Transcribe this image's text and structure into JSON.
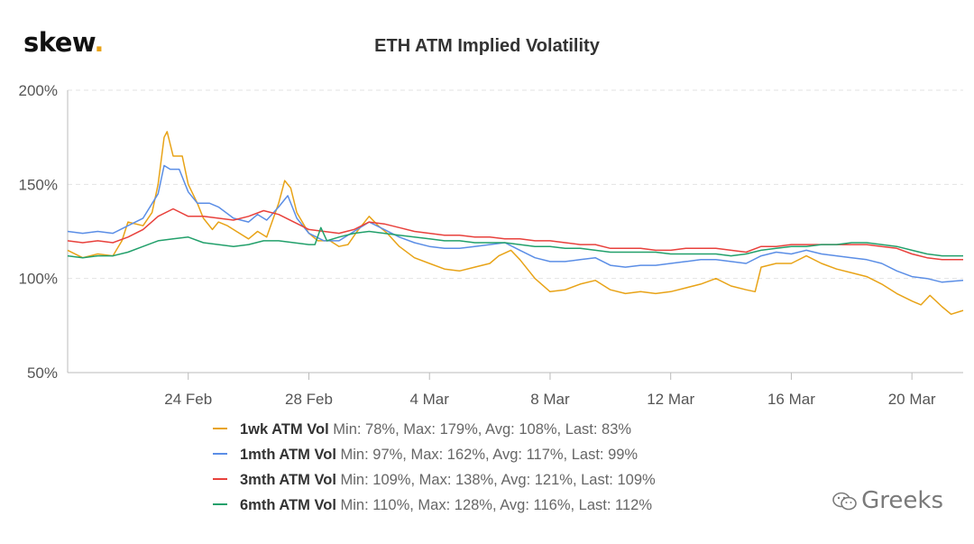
{
  "brand": {
    "logo_text": "skew",
    "logo_dot": ".",
    "dot_color": "#e8a317"
  },
  "watermark": {
    "text": "Greeks",
    "icon": "wechat-icon"
  },
  "chart_data": {
    "type": "line",
    "title": "ETH ATM Implied Volatility",
    "xlabel": "",
    "ylabel": "",
    "x_ticks": [
      "24 Feb",
      "28 Feb",
      "4 Mar",
      "8 Mar",
      "12 Mar",
      "16 Mar",
      "20 Mar"
    ],
    "x_tick_days": [
      4,
      8,
      12,
      16,
      20,
      24,
      28
    ],
    "x_range_days": [
      0,
      29.7
    ],
    "x_day0": "20 Feb",
    "y_ticks": [
      "50%",
      "100%",
      "150%",
      "200%"
    ],
    "y_tick_values": [
      50,
      100,
      150,
      200
    ],
    "ylim": [
      50,
      200
    ],
    "grid": "horizontal dashed",
    "legend_position": "bottom",
    "series": [
      {
        "name": "1wk ATM Vol",
        "color": "#e8a317",
        "stats": "Min: 78%, Max: 179%, Avg: 108%, Last: 83%",
        "points": [
          [
            0,
            115
          ],
          [
            0.5,
            111
          ],
          [
            1,
            113
          ],
          [
            1.5,
            112
          ],
          [
            1.8,
            120
          ],
          [
            2,
            130
          ],
          [
            2.5,
            128
          ],
          [
            2.8,
            135
          ],
          [
            3,
            150
          ],
          [
            3.2,
            175
          ],
          [
            3.3,
            178
          ],
          [
            3.5,
            165
          ],
          [
            3.8,
            165
          ],
          [
            4,
            150
          ],
          [
            4.3,
            140
          ],
          [
            4.5,
            132
          ],
          [
            4.8,
            126
          ],
          [
            5,
            130
          ],
          [
            5.3,
            128
          ],
          [
            5.6,
            125
          ],
          [
            6,
            121
          ],
          [
            6.3,
            125
          ],
          [
            6.6,
            122
          ],
          [
            7,
            140
          ],
          [
            7.2,
            152
          ],
          [
            7.4,
            148
          ],
          [
            7.6,
            135
          ],
          [
            8,
            124
          ],
          [
            8.3,
            120
          ],
          [
            8.7,
            120
          ],
          [
            9,
            117
          ],
          [
            9.3,
            118
          ],
          [
            9.6,
            125
          ],
          [
            10,
            133
          ],
          [
            10.3,
            128
          ],
          [
            10.6,
            124
          ],
          [
            11,
            117
          ],
          [
            11.5,
            111
          ],
          [
            12,
            108
          ],
          [
            12.5,
            105
          ],
          [
            13,
            104
          ],
          [
            13.5,
            106
          ],
          [
            14,
            108
          ],
          [
            14.3,
            112
          ],
          [
            14.7,
            115
          ],
          [
            15,
            110
          ],
          [
            15.5,
            100
          ],
          [
            16,
            93
          ],
          [
            16.5,
            94
          ],
          [
            17,
            97
          ],
          [
            17.5,
            99
          ],
          [
            18,
            94
          ],
          [
            18.5,
            92
          ],
          [
            19,
            93
          ],
          [
            19.5,
            92
          ],
          [
            20,
            93
          ],
          [
            20.5,
            95
          ],
          [
            21,
            97
          ],
          [
            21.5,
            100
          ],
          [
            22,
            96
          ],
          [
            22.5,
            94
          ],
          [
            22.8,
            93
          ],
          [
            23,
            106
          ],
          [
            23.5,
            108
          ],
          [
            24,
            108
          ],
          [
            24.5,
            112
          ],
          [
            25,
            108
          ],
          [
            25.5,
            105
          ],
          [
            26,
            103
          ],
          [
            26.5,
            101
          ],
          [
            27,
            97
          ],
          [
            27.5,
            92
          ],
          [
            28,
            88
          ],
          [
            28.3,
            86
          ],
          [
            28.6,
            91
          ],
          [
            29,
            85
          ],
          [
            29.3,
            81
          ],
          [
            29.7,
            83
          ]
        ]
      },
      {
        "name": "1mth ATM Vol",
        "color": "#5b8ee6",
        "stats": "Min: 97%, Max: 162%, Avg: 117%, Last: 99%",
        "points": [
          [
            0,
            125
          ],
          [
            0.5,
            124
          ],
          [
            1,
            125
          ],
          [
            1.5,
            124
          ],
          [
            2,
            128
          ],
          [
            2.5,
            132
          ],
          [
            3,
            145
          ],
          [
            3.2,
            160
          ],
          [
            3.4,
            158
          ],
          [
            3.7,
            158
          ],
          [
            4,
            146
          ],
          [
            4.3,
            140
          ],
          [
            4.7,
            140
          ],
          [
            5,
            138
          ],
          [
            5.5,
            132
          ],
          [
            6,
            130
          ],
          [
            6.3,
            134
          ],
          [
            6.6,
            131
          ],
          [
            7,
            138
          ],
          [
            7.3,
            144
          ],
          [
            7.6,
            132
          ],
          [
            8,
            124
          ],
          [
            8.5,
            120
          ],
          [
            9,
            120
          ],
          [
            9.5,
            125
          ],
          [
            10,
            130
          ],
          [
            10.5,
            126
          ],
          [
            11,
            122
          ],
          [
            11.5,
            119
          ],
          [
            12,
            117
          ],
          [
            12.5,
            116
          ],
          [
            13,
            116
          ],
          [
            13.5,
            117
          ],
          [
            14,
            118
          ],
          [
            14.5,
            119
          ],
          [
            15,
            115
          ],
          [
            15.5,
            111
          ],
          [
            16,
            109
          ],
          [
            16.5,
            109
          ],
          [
            17,
            110
          ],
          [
            17.5,
            111
          ],
          [
            18,
            107
          ],
          [
            18.5,
            106
          ],
          [
            19,
            107
          ],
          [
            19.5,
            107
          ],
          [
            20,
            108
          ],
          [
            20.5,
            109
          ],
          [
            21,
            110
          ],
          [
            21.5,
            110
          ],
          [
            22,
            109
          ],
          [
            22.5,
            108
          ],
          [
            23,
            112
          ],
          [
            23.5,
            114
          ],
          [
            24,
            113
          ],
          [
            24.5,
            115
          ],
          [
            25,
            113
          ],
          [
            25.5,
            112
          ],
          [
            26,
            111
          ],
          [
            26.5,
            110
          ],
          [
            27,
            108
          ],
          [
            27.5,
            104
          ],
          [
            28,
            101
          ],
          [
            28.5,
            100
          ],
          [
            29,
            98
          ],
          [
            29.7,
            99
          ]
        ]
      },
      {
        "name": "3mth ATM Vol",
        "color": "#e8413c",
        "stats": "Min: 109%, Max: 138%, Avg: 121%, Last: 109%",
        "points": [
          [
            0,
            120
          ],
          [
            0.5,
            119
          ],
          [
            1,
            120
          ],
          [
            1.5,
            119
          ],
          [
            2,
            122
          ],
          [
            2.5,
            126
          ],
          [
            3,
            133
          ],
          [
            3.5,
            137
          ],
          [
            4,
            133
          ],
          [
            4.5,
            133
          ],
          [
            5,
            132
          ],
          [
            5.5,
            131
          ],
          [
            6,
            133
          ],
          [
            6.5,
            136
          ],
          [
            7,
            134
          ],
          [
            7.5,
            130
          ],
          [
            8,
            126
          ],
          [
            8.5,
            125
          ],
          [
            9,
            124
          ],
          [
            9.5,
            126
          ],
          [
            10,
            130
          ],
          [
            10.5,
            129
          ],
          [
            11,
            127
          ],
          [
            11.5,
            125
          ],
          [
            12,
            124
          ],
          [
            12.5,
            123
          ],
          [
            13,
            123
          ],
          [
            13.5,
            122
          ],
          [
            14,
            122
          ],
          [
            14.5,
            121
          ],
          [
            15,
            121
          ],
          [
            15.5,
            120
          ],
          [
            16,
            120
          ],
          [
            16.5,
            119
          ],
          [
            17,
            118
          ],
          [
            17.5,
            118
          ],
          [
            18,
            116
          ],
          [
            18.5,
            116
          ],
          [
            19,
            116
          ],
          [
            19.5,
            115
          ],
          [
            20,
            115
          ],
          [
            20.5,
            116
          ],
          [
            21,
            116
          ],
          [
            21.5,
            116
          ],
          [
            22,
            115
          ],
          [
            22.5,
            114
          ],
          [
            23,
            117
          ],
          [
            23.5,
            117
          ],
          [
            24,
            118
          ],
          [
            24.5,
            118
          ],
          [
            25,
            118
          ],
          [
            25.5,
            118
          ],
          [
            26,
            118
          ],
          [
            26.5,
            118
          ],
          [
            27,
            117
          ],
          [
            27.5,
            116
          ],
          [
            28,
            113
          ],
          [
            28.5,
            111
          ],
          [
            29,
            110
          ],
          [
            29.7,
            110
          ]
        ]
      },
      {
        "name": "6mth ATM Vol",
        "color": "#22a06b",
        "stats": "Min: 110%, Max: 128%, Avg: 116%, Last: 112%",
        "points": [
          [
            0,
            112
          ],
          [
            0.5,
            111
          ],
          [
            1,
            112
          ],
          [
            1.5,
            112
          ],
          [
            2,
            114
          ],
          [
            2.5,
            117
          ],
          [
            3,
            120
          ],
          [
            3.5,
            121
          ],
          [
            4,
            122
          ],
          [
            4.5,
            119
          ],
          [
            5,
            118
          ],
          [
            5.5,
            117
          ],
          [
            6,
            118
          ],
          [
            6.5,
            120
          ],
          [
            7,
            120
          ],
          [
            7.5,
            119
          ],
          [
            8,
            118
          ],
          [
            8.2,
            118
          ],
          [
            8.4,
            127
          ],
          [
            8.6,
            120
          ],
          [
            9,
            122
          ],
          [
            9.5,
            124
          ],
          [
            10,
            125
          ],
          [
            10.5,
            124
          ],
          [
            11,
            123
          ],
          [
            11.5,
            122
          ],
          [
            12,
            121
          ],
          [
            12.5,
            120
          ],
          [
            13,
            120
          ],
          [
            13.5,
            119
          ],
          [
            14,
            119
          ],
          [
            14.5,
            119
          ],
          [
            15,
            118
          ],
          [
            15.5,
            117
          ],
          [
            16,
            117
          ],
          [
            16.5,
            116
          ],
          [
            17,
            116
          ],
          [
            17.5,
            115
          ],
          [
            18,
            114
          ],
          [
            18.5,
            114
          ],
          [
            19,
            114
          ],
          [
            19.5,
            114
          ],
          [
            20,
            113
          ],
          [
            20.5,
            113
          ],
          [
            21,
            113
          ],
          [
            21.5,
            113
          ],
          [
            22,
            112
          ],
          [
            22.5,
            113
          ],
          [
            23,
            115
          ],
          [
            23.5,
            116
          ],
          [
            24,
            117
          ],
          [
            24.5,
            117
          ],
          [
            25,
            118
          ],
          [
            25.5,
            118
          ],
          [
            26,
            119
          ],
          [
            26.5,
            119
          ],
          [
            27,
            118
          ],
          [
            27.5,
            117
          ],
          [
            28,
            115
          ],
          [
            28.5,
            113
          ],
          [
            29,
            112
          ],
          [
            29.7,
            112
          ]
        ]
      }
    ]
  }
}
